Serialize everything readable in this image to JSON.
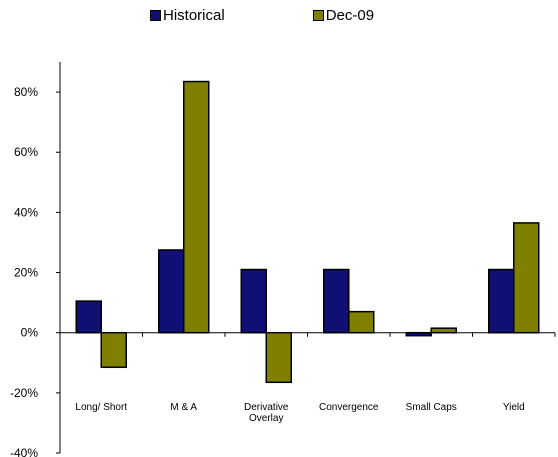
{
  "chart_data": {
    "type": "bar",
    "categories": [
      "Long/ Short",
      "M & A",
      "Derivative Overlay",
      "Convergence",
      "Small Caps",
      "Yield"
    ],
    "category_lines": [
      [
        "Long/ Short"
      ],
      [
        "M & A"
      ],
      [
        "Derivative",
        "Overlay"
      ],
      [
        "Convergence"
      ],
      [
        "Small Caps"
      ],
      [
        "Yield"
      ]
    ],
    "series": [
      {
        "name": "Historical",
        "color": "#0f0f74",
        "values": [
          10.5,
          27.5,
          21,
          21,
          -1,
          21
        ]
      },
      {
        "name": "Dec-09",
        "color": "#808000",
        "values": [
          -11.5,
          83.5,
          -16.5,
          7,
          1.5,
          36.5
        ]
      }
    ],
    "ylim": [
      -40,
      90
    ],
    "yticks": [
      -40,
      -20,
      0,
      20,
      40,
      60,
      80
    ],
    "ytick_labels": [
      "-40%",
      "-20%",
      "0%",
      "20%",
      "40%",
      "60%",
      "80%"
    ],
    "title": "",
    "xlabel": "",
    "ylabel": "",
    "legend_position": "top-center",
    "grid": false
  }
}
